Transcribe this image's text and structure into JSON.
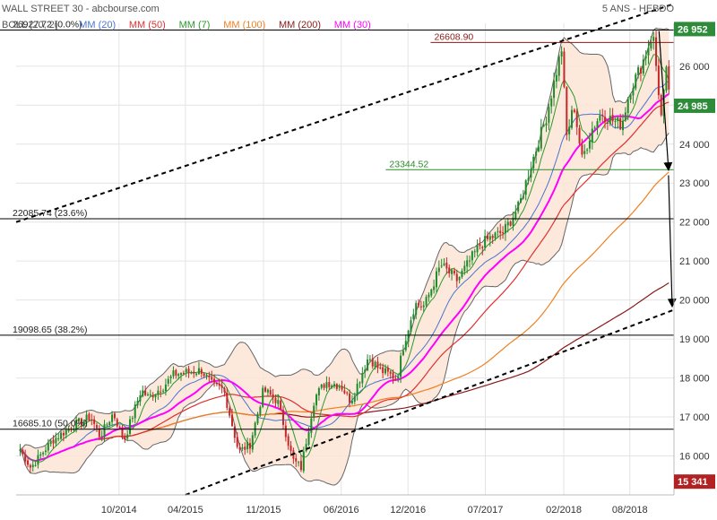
{
  "header": {
    "title": "WALL STREET 30 - abcbourse.com",
    "period": "5 ANS - HEBDO",
    "legend": [
      {
        "label": "BOLL (20, 2)",
        "color": "#555555"
      },
      {
        "label": "MM (20)",
        "color": "#4a74d0"
      },
      {
        "label": "MM (50)",
        "color": "#e03030"
      },
      {
        "label": "MM (7)",
        "color": "#2a9a2a"
      },
      {
        "label": "MM (100)",
        "color": "#f08020"
      },
      {
        "label": "MM (200)",
        "color": "#8b1a1a"
      },
      {
        "label": "MM (30)",
        "color": "#ff00ff"
      }
    ]
  },
  "chart_data": {
    "type": "candlestick",
    "ylim": [
      15000,
      27100
    ],
    "yticks": [
      16000,
      17000,
      18000,
      19000,
      20000,
      21000,
      22000,
      23000,
      24000,
      25000,
      26000
    ],
    "ytick_labels": [
      "16 000",
      "17 000",
      "18 000",
      "19 000",
      "20 000",
      "21 000",
      "22 000",
      "23 000",
      "24 000",
      "25 000",
      "26 000"
    ],
    "xlim": [
      "2013-12-23",
      "2018-11-30"
    ],
    "xtick_labels": [
      {
        "date": "2014-10-01",
        "label": "10/2014"
      },
      {
        "date": "2015-04-01",
        "label": "04/2015"
      },
      {
        "date": "2015-11-01",
        "label": "11/2015"
      },
      {
        "date": "2016-06-01",
        "label": "06/2016"
      },
      {
        "date": "2016-12-01",
        "label": "12/2016"
      },
      {
        "date": "2017-07-01",
        "label": "07/2017"
      },
      {
        "date": "2018-02-01",
        "label": "02/2018"
      },
      {
        "date": "2018-08-01",
        "label": "08/2018"
      }
    ],
    "last_price": {
      "value": 24985,
      "label": "24 985",
      "color": "#2e8b3a"
    },
    "high_tag": {
      "value": 26952,
      "label": "26 952",
      "color": "#2e8b3a"
    },
    "low_tag": {
      "value": 15341,
      "label": "15 341",
      "color": "#b22222"
    },
    "fibonacci_levels": [
      {
        "value": 26927.72,
        "label": "26927.72  (0.0%)",
        "color": "#000000"
      },
      {
        "value": 22085.74,
        "label": "22085.74  (23.6%)",
        "color": "#000000"
      },
      {
        "value": 19098.65,
        "label": "19098.65  (38.2%)",
        "color": "#000000"
      },
      {
        "value": 16685.1,
        "label": "16685.10  (50.0%)",
        "color": "#000000"
      }
    ],
    "horizontal_lines": [
      {
        "value": 26608.9,
        "label": "26608.90",
        "color": "#8b1a1a",
        "start": "2017-02-01"
      },
      {
        "value": 23344.52,
        "label": "23344.52",
        "color": "#2a8a2a",
        "start": "2016-10-01"
      }
    ],
    "trend_channel": [
      {
        "name": "upper",
        "from": {
          "date": "2013-12-23",
          "value": 22000
        },
        "to": {
          "date": "2018-11-30",
          "value": 27600
        }
      },
      {
        "name": "lower",
        "from": {
          "date": "2015-04-01",
          "value": 15000
        },
        "to": {
          "date": "2018-11-30",
          "value": 19750
        }
      }
    ],
    "arrows": [
      {
        "from": {
          "date": "2018-10-20",
          "value": 26900
        },
        "to": {
          "date": "2018-11-15",
          "value": 23350
        }
      },
      {
        "from": {
          "date": "2018-11-15",
          "value": 23200
        },
        "to": {
          "date": "2018-11-25",
          "value": 19850
        }
      }
    ],
    "anchors": [
      [
        "2014-01-01",
        16200
      ],
      [
        "2014-02-01",
        15700
      ],
      [
        "2014-04-01",
        16400
      ],
      [
        "2014-06-01",
        16800
      ],
      [
        "2014-07-15",
        17000
      ],
      [
        "2014-08-10",
        16500
      ],
      [
        "2014-09-15",
        17100
      ],
      [
        "2014-10-15",
        16400
      ],
      [
        "2014-12-01",
        17700
      ],
      [
        "2014-12-20",
        17500
      ],
      [
        "2015-02-01",
        17800
      ],
      [
        "2015-03-01",
        18100
      ],
      [
        "2015-05-15",
        18200
      ],
      [
        "2015-06-15",
        17800
      ],
      [
        "2015-07-15",
        17700
      ],
      [
        "2015-08-25",
        16100
      ],
      [
        "2015-09-25",
        16300
      ],
      [
        "2015-11-01",
        17700
      ],
      [
        "2015-12-10",
        17400
      ],
      [
        "2016-01-20",
        15900
      ],
      [
        "2016-02-12",
        15700
      ],
      [
        "2016-03-20",
        17500
      ],
      [
        "2016-04-20",
        17900
      ],
      [
        "2016-06-01",
        17800
      ],
      [
        "2016-06-27",
        17400
      ],
      [
        "2016-08-15",
        18550
      ],
      [
        "2016-09-15",
        18200
      ],
      [
        "2016-11-01",
        18000
      ],
      [
        "2016-11-20",
        18900
      ],
      [
        "2016-12-20",
        19900
      ],
      [
        "2017-01-15",
        19850
      ],
      [
        "2017-03-01",
        20900
      ],
      [
        "2017-04-15",
        20500
      ],
      [
        "2017-06-15",
        21400
      ],
      [
        "2017-07-15",
        21600
      ],
      [
        "2017-08-20",
        21750
      ],
      [
        "2017-10-01",
        22400
      ],
      [
        "2017-11-01",
        23400
      ],
      [
        "2017-12-15",
        24700
      ],
      [
        "2018-01-26",
        26450
      ],
      [
        "2018-02-09",
        24200
      ],
      [
        "2018-03-01",
        25000
      ],
      [
        "2018-03-23",
        23600
      ],
      [
        "2018-04-20",
        24400
      ],
      [
        "2018-05-15",
        24800
      ],
      [
        "2018-06-15",
        24600
      ],
      [
        "2018-07-10",
        24500
      ],
      [
        "2018-08-01",
        25400
      ],
      [
        "2018-09-01",
        26000
      ],
      [
        "2018-10-03",
        26850
      ],
      [
        "2018-10-26",
        24700
      ],
      [
        "2018-11-10",
        25900
      ],
      [
        "2018-11-22",
        24985
      ]
    ],
    "series": [
      {
        "name": "BOLL (20, 2)",
        "color": "#555555"
      },
      {
        "name": "MM (20)",
        "color": "#4a74d0"
      },
      {
        "name": "MM (50)",
        "color": "#e03030"
      },
      {
        "name": "MM (7)",
        "color": "#2a9a2a"
      },
      {
        "name": "MM (100)",
        "color": "#f08020"
      },
      {
        "name": "MM (200)",
        "color": "#8b1a1a"
      },
      {
        "name": "MM (30)",
        "color": "#ff00ff"
      }
    ]
  }
}
